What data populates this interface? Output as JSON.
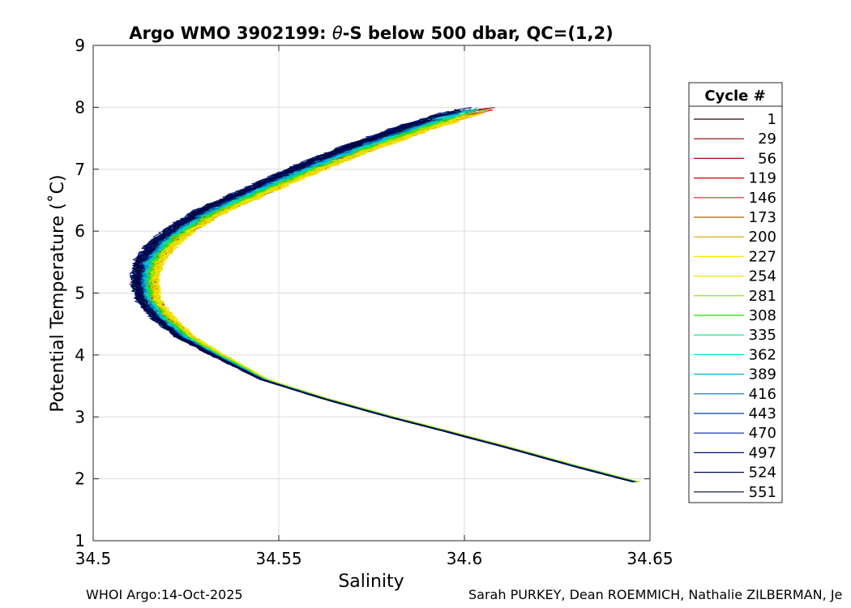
{
  "chart_data": {
    "type": "line",
    "title_prefix": "Argo WMO 3902199: ",
    "title_theta": "θ",
    "title_suffix": "-S below 500 dbar,  QC=(1,2)",
    "xlabel": "Salinity",
    "ylabel": "Potential Temperature (˚C)",
    "xlim": [
      34.5,
      34.65
    ],
    "ylim": [
      1,
      9
    ],
    "x_ticks": [
      "34.5",
      "34.55",
      "34.6",
      "34.65"
    ],
    "y_ticks": [
      "1",
      "2",
      "3",
      "4",
      "5",
      "6",
      "7",
      "8",
      "9"
    ],
    "grid": true,
    "legend_title": "Cycle #",
    "legend_position": "right",
    "series": [
      {
        "name": "1",
        "color": "#2a0000",
        "salinity_offset": 0.0015
      },
      {
        "name": "29",
        "color": "#8b0000",
        "salinity_offset": 0.003
      },
      {
        "name": "56",
        "color": "#b20000",
        "salinity_offset": 0.004
      },
      {
        "name": "119",
        "color": "#d40000",
        "salinity_offset": 0.0048
      },
      {
        "name": "146",
        "color": "#e02020",
        "salinity_offset": 0.005
      },
      {
        "name": "173",
        "color": "#b06000",
        "salinity_offset": 0.0052
      },
      {
        "name": "200",
        "color": "#d8a800",
        "salinity_offset": 0.0058
      },
      {
        "name": "227",
        "color": "#ffe000",
        "salinity_offset": 0.0065
      },
      {
        "name": "254",
        "color": "#e8e600",
        "salinity_offset": 0.006
      },
      {
        "name": "281",
        "color": "#80e000",
        "salinity_offset": 0.003
      },
      {
        "name": "308",
        "color": "#20e000",
        "salinity_offset": 0.002
      },
      {
        "name": "335",
        "color": "#00e080",
        "salinity_offset": 0.001
      },
      {
        "name": "362",
        "color": "#00e0d0",
        "salinity_offset": 0.0005
      },
      {
        "name": "389",
        "color": "#00b0e0",
        "salinity_offset": 0.0
      },
      {
        "name": "416",
        "color": "#0070b0",
        "salinity_offset": -0.001
      },
      {
        "name": "443",
        "color": "#0040a0",
        "salinity_offset": -0.002
      },
      {
        "name": "470",
        "color": "#0020a0",
        "salinity_offset": -0.003
      },
      {
        "name": "497",
        "color": "#001070",
        "salinity_offset": -0.0035
      },
      {
        "name": "524",
        "color": "#000850",
        "salinity_offset": -0.003
      },
      {
        "name": "551",
        "color": "#000840",
        "salinity_offset": -0.0025
      }
    ],
    "envelope": {
      "theta": [
        1.95,
        2.2,
        2.5,
        2.8,
        3.0,
        3.3,
        3.6,
        4.0,
        4.3,
        4.6,
        4.9,
        5.2,
        5.5,
        5.8,
        6.0,
        6.3,
        6.6,
        7.0,
        7.4,
        7.7,
        8.0
      ],
      "salinity": [
        34.646,
        34.63,
        34.612,
        34.593,
        34.58,
        34.562,
        34.546,
        34.533,
        34.524,
        34.518,
        34.514,
        34.513,
        34.514,
        34.518,
        34.522,
        34.53,
        34.541,
        34.556,
        34.573,
        34.587,
        34.603
      ]
    }
  },
  "footer": {
    "left": "WHOI Argo:14-Oct-2025",
    "right": "Sarah PURKEY, Dean ROEMMICH, Nathalie ZILBERMAN, Je"
  }
}
